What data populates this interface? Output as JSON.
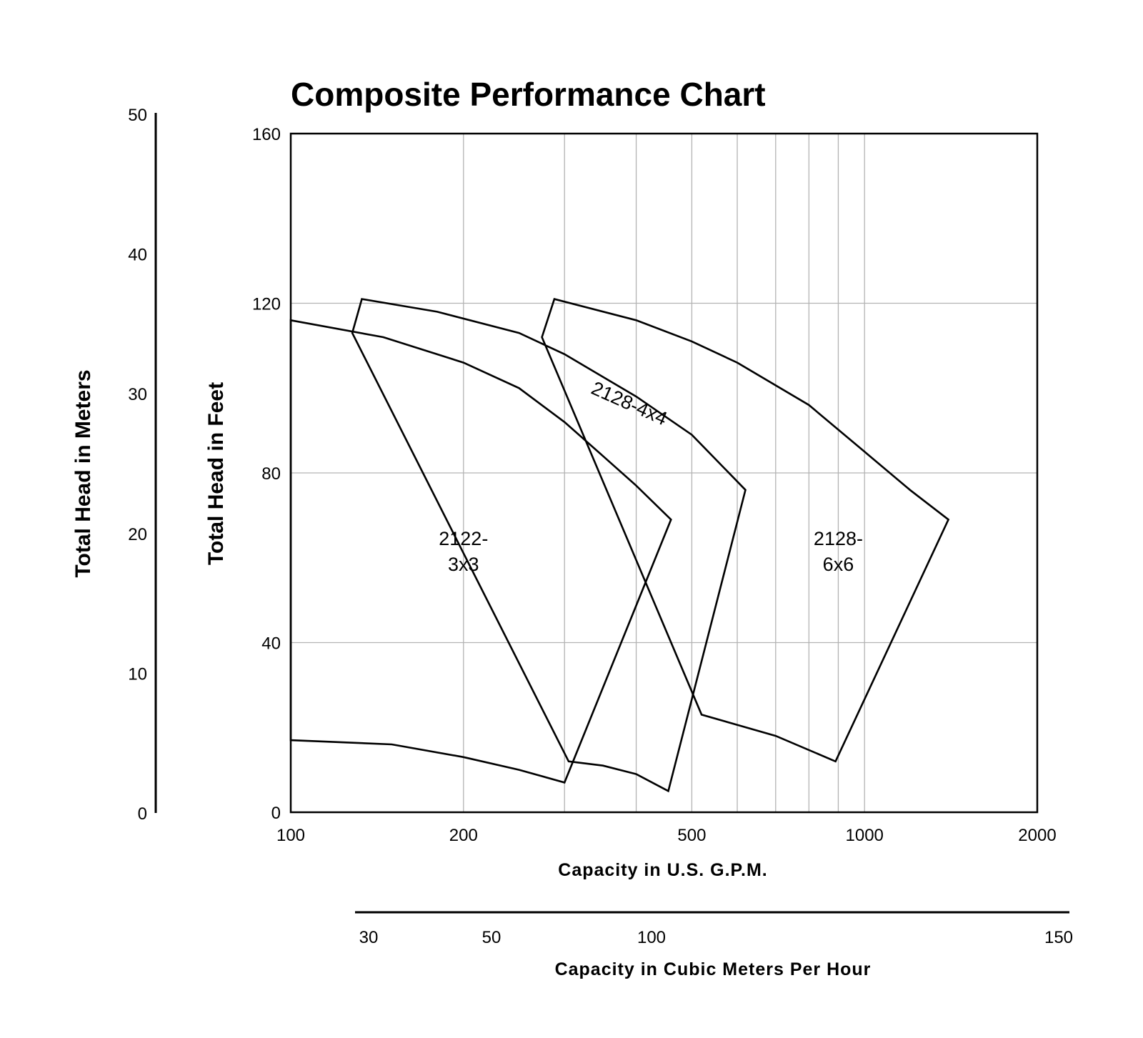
{
  "chart_data": {
    "type": "line",
    "title": "Composite Performance Chart",
    "xlabel": "Capacity in U.S. G.P.M.",
    "ylabel": "Total Head in Feet",
    "x_scale": "log",
    "xlim": [
      100,
      2000
    ],
    "ylim": [
      0,
      160
    ],
    "x_ticks": [
      100,
      200,
      500,
      1000,
      2000
    ],
    "x_tick_labels": [
      "100",
      "200",
      "500",
      "1000",
      "2000"
    ],
    "x_grid": [
      200,
      300,
      400,
      500,
      600,
      700,
      800,
      900,
      1000
    ],
    "y_ticks": [
      0,
      40,
      80,
      120,
      160
    ],
    "y_tick_labels": [
      "0",
      "40",
      "80",
      "120",
      "160"
    ],
    "grid": true,
    "secondary_y": {
      "label": "Total Head in Meters",
      "range": [
        0,
        50
      ],
      "ticks": [
        0,
        10,
        20,
        30,
        40,
        50
      ],
      "tick_labels": [
        "0",
        "10",
        "20",
        "30",
        "40",
        "50"
      ]
    },
    "secondary_x": {
      "label": "Capacity in Cubic Meters Per Hour",
      "ticks": [
        30,
        50,
        100,
        150
      ],
      "tick_labels": [
        "30",
        "50",
        "100",
        "150"
      ]
    },
    "regions": [
      {
        "label_lines": [
          "2122-",
          "3x3"
        ],
        "label_at": [
          200,
          63
        ],
        "outline": [
          [
            100,
            116
          ],
          [
            145,
            112
          ],
          [
            200,
            106
          ],
          [
            250,
            100
          ],
          [
            300,
            92
          ],
          [
            350,
            84
          ],
          [
            400,
            77
          ],
          [
            460,
            69
          ],
          [
            300,
            7
          ],
          [
            250,
            10
          ],
          [
            200,
            13
          ],
          [
            150,
            16
          ],
          [
            100,
            17
          ]
        ]
      },
      {
        "label_lines": [
          "2128-4x4"
        ],
        "label_at": [
          385,
          95
        ],
        "label_rotate": 24,
        "outline": [
          [
            128,
            113
          ],
          [
            133,
            121
          ],
          [
            180,
            118
          ],
          [
            250,
            113
          ],
          [
            300,
            108
          ],
          [
            400,
            98
          ],
          [
            500,
            89
          ],
          [
            620,
            76
          ],
          [
            455,
            5
          ],
          [
            400,
            9
          ],
          [
            350,
            11
          ],
          [
            305,
            12
          ]
        ]
      },
      {
        "label_lines": [
          "2128-",
          "6x6"
        ],
        "label_at": [
          900,
          63
        ],
        "outline": [
          [
            274,
            112
          ],
          [
            288,
            121
          ],
          [
            400,
            116
          ],
          [
            500,
            111
          ],
          [
            600,
            106
          ],
          [
            800,
            96
          ],
          [
            1000,
            85
          ],
          [
            1200,
            76
          ],
          [
            1400,
            69
          ],
          [
            890,
            12
          ],
          [
            700,
            18
          ],
          [
            520,
            23
          ]
        ]
      }
    ]
  }
}
